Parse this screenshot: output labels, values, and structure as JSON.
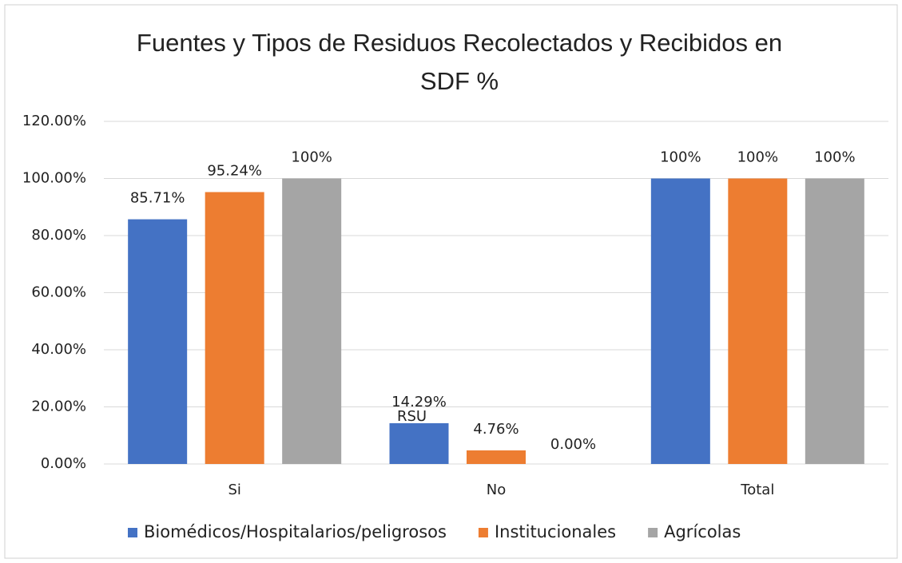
{
  "chart_data": {
    "type": "bar",
    "title": "Fuentes y Tipos de Residuos Recolectados y Recibidos en SDF %",
    "categories": [
      "Si",
      "No",
      "Total"
    ],
    "series": [
      {
        "name": "Biomédicos/Hospitalarios/peligrosos",
        "color": "#4472c4",
        "values": [
          85.71,
          14.29,
          100
        ],
        "value_labels": [
          "85.71%",
          "14.29%",
          "100%"
        ]
      },
      {
        "name": "Institucionales",
        "color": "#ed7d31",
        "values": [
          95.24,
          4.76,
          100
        ],
        "value_labels": [
          "95.24%",
          "4.76%",
          "100%"
        ]
      },
      {
        "name": "Agrícolas",
        "color": "#a5a5a5",
        "values": [
          100,
          0,
          100
        ],
        "value_labels": [
          "100%",
          "0.00%",
          "100%"
        ]
      }
    ],
    "annotation": "RSU",
    "ylim": [
      0,
      120
    ],
    "yticks": [
      {
        "value": 0,
        "label": "0.00%"
      },
      {
        "value": 20,
        "label": "20.00%"
      },
      {
        "value": 40,
        "label": "40.00%"
      },
      {
        "value": 60,
        "label": "60.00%"
      },
      {
        "value": 80,
        "label": "80.00%"
      },
      {
        "value": 100,
        "label": "100.00%"
      },
      {
        "value": 120,
        "label": "120.00%"
      }
    ],
    "grid": true,
    "legend": "bottom"
  }
}
